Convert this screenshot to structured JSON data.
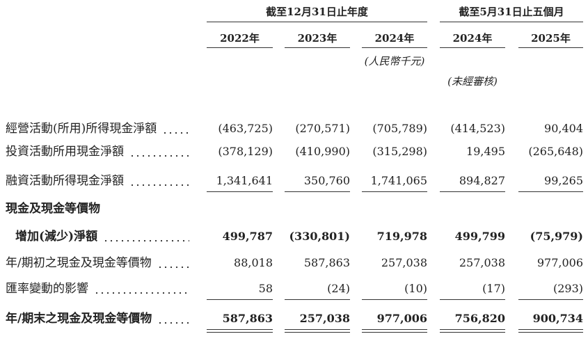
{
  "header": {
    "groups": [
      {
        "label": "截至12月31日止年度",
        "from": 0,
        "to": 2
      },
      {
        "label": "截至5月31日止五個月",
        "from": 3,
        "to": 4
      }
    ],
    "columns": [
      "2022年",
      "2023年",
      "2024年",
      "2024年",
      "2025年"
    ],
    "notes": [
      {
        "text": "(人民幣千元)",
        "column": 2
      },
      {
        "text": "(未經審核)",
        "column": 3
      }
    ]
  },
  "table": {
    "rows": [
      {
        "label": "經營活動(所用)所得現金淨額",
        "values": [
          "(463,725)",
          "(270,571)",
          "(705,789)",
          "(414,523)",
          "90,404"
        ]
      },
      {
        "label": "投資活動所用現金淨額",
        "values": [
          "(378,129)",
          "(410,990)",
          "(315,298)",
          "19,495",
          "(265,648)"
        ]
      },
      {
        "label": "融資活動所得現金淨額",
        "values": [
          "1,341,641",
          "350,760",
          "1,741,065",
          "894,827",
          "99,265"
        ],
        "rule": "single"
      },
      {
        "label": "現金及現金等價物",
        "bold": true
      },
      {
        "label": "增加(減少)淨額",
        "values": [
          "499,787",
          "(330,801)",
          "719,978",
          "499,799",
          "(75,979)"
        ],
        "bold": true,
        "indent": true
      },
      {
        "label": "年/期初之現金及現金等價物",
        "values": [
          "88,018",
          "587,863",
          "257,038",
          "257,038",
          "977,006"
        ]
      },
      {
        "label": "匯率變動的影響",
        "values": [
          "58",
          "(24)",
          "(10)",
          "(17)",
          "(293)"
        ],
        "rule": "single"
      },
      {
        "label": "年/期末之現金及現金等價物",
        "values": [
          "587,863",
          "257,038",
          "977,006",
          "756,820",
          "900,734"
        ],
        "bold": true,
        "rule": "double"
      }
    ]
  }
}
